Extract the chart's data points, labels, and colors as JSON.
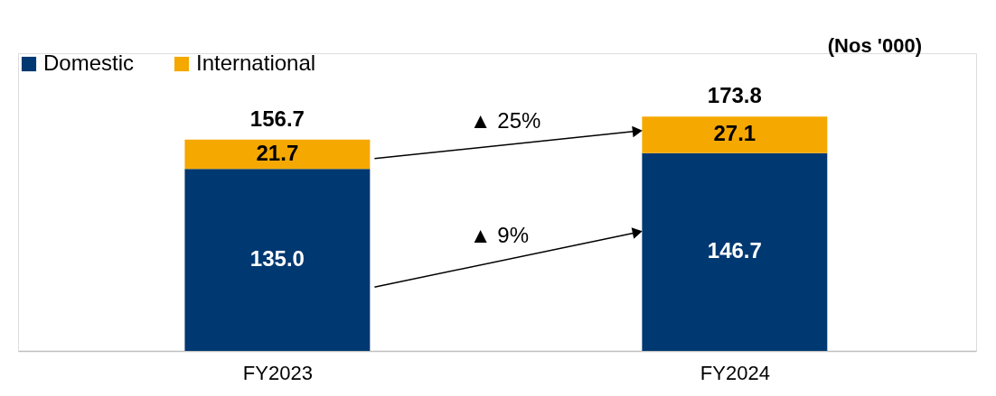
{
  "chart_data": {
    "type": "bar",
    "stacked": true,
    "categories": [
      "FY2023",
      "FY2024"
    ],
    "series": [
      {
        "name": "Domestic",
        "color": "#003871",
        "values": [
          135.0,
          146.7
        ],
        "value_labels": [
          "135.0",
          "146.7"
        ]
      },
      {
        "name": "International",
        "color": "#f5a800",
        "values": [
          21.7,
          27.1
        ],
        "value_labels": [
          "21.7",
          "27.1"
        ]
      }
    ],
    "data_labels": true,
    "totals": [
      "156.7",
      "173.8"
    ],
    "legend": "top left",
    "grid": false,
    "annotations": [
      "(Nos '000)",
      "▲ 9%",
      "▲ 25%"
    ]
  }
}
